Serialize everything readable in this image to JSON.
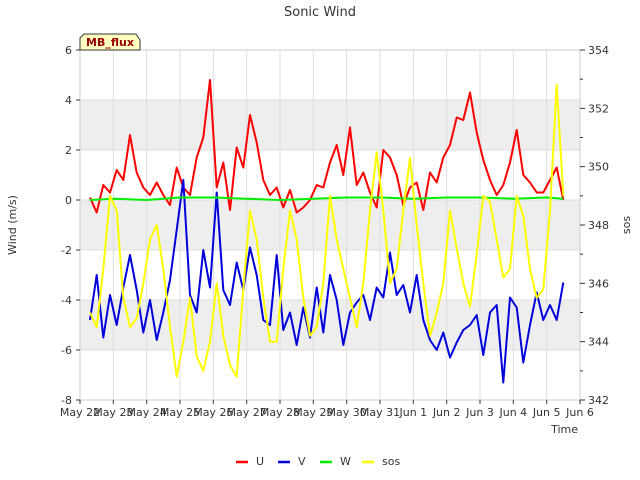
{
  "chart_data": {
    "type": "line",
    "title": "Sonic Wind",
    "xlabel": "Time",
    "ylabel": "Wind (m/s)",
    "y2label": "sos",
    "badge": "MB_flux",
    "x_ticks": [
      "May 22",
      "May 23",
      "May 24",
      "May 25",
      "May 26",
      "May 27",
      "May 28",
      "May 29",
      "May 30",
      "May 31",
      "Jun 1",
      "Jun 2",
      "Jun 3",
      "Jun 4",
      "Jun 5",
      "Jun 6"
    ],
    "xlim": [
      0,
      15
    ],
    "ylim": [
      -8,
      6
    ],
    "y_ticks": [
      -8,
      -6,
      -4,
      -2,
      0,
      2,
      4,
      6
    ],
    "y2lim": [
      342,
      354
    ],
    "y2_ticks": [
      342,
      344,
      346,
      348,
      350,
      352,
      354
    ],
    "grid": true,
    "legend_position": "bottom-center",
    "colors": {
      "U": "#ff0000",
      "V": "#0000dd",
      "W": "#00ee00",
      "sos": "#ffff00",
      "band": "#eeeeee",
      "badge_bg": "#ffffc0",
      "badge_text": "#990000"
    },
    "series": [
      {
        "name": "U",
        "axis": "left",
        "x": [
          0.3,
          0.5,
          0.7,
          0.9,
          1.1,
          1.3,
          1.5,
          1.7,
          1.9,
          2.1,
          2.3,
          2.5,
          2.7,
          2.9,
          3.1,
          3.3,
          3.5,
          3.7,
          3.9,
          4.1,
          4.3,
          4.5,
          4.7,
          4.9,
          5.1,
          5.3,
          5.5,
          5.7,
          5.9,
          6.1,
          6.3,
          6.5,
          6.7,
          6.9,
          7.1,
          7.3,
          7.5,
          7.7,
          7.9,
          8.1,
          8.3,
          8.5,
          8.7,
          8.9,
          9.1,
          9.3,
          9.5,
          9.7,
          9.9,
          10.1,
          10.3,
          10.5,
          10.7,
          10.9,
          11.1,
          11.3,
          11.5,
          11.7,
          11.9,
          12.1,
          12.3,
          12.5,
          12.7,
          12.9,
          13.1,
          13.3,
          13.5,
          13.7,
          13.9,
          14.1,
          14.3,
          14.5
        ],
        "values": [
          0.1,
          -0.5,
          0.6,
          0.3,
          1.2,
          0.8,
          2.6,
          1.1,
          0.5,
          0.2,
          0.7,
          0.2,
          -0.2,
          1.3,
          0.5,
          0.2,
          1.7,
          2.5,
          4.8,
          0.5,
          1.5,
          -0.4,
          2.1,
          1.3,
          3.4,
          2.3,
          0.8,
          0.2,
          0.5,
          -0.3,
          0.4,
          -0.5,
          -0.3,
          0.0,
          0.6,
          0.5,
          1.5,
          2.2,
          1.0,
          2.9,
          0.6,
          1.1,
          0.3,
          -0.3,
          2.0,
          1.7,
          1.0,
          -0.2,
          0.5,
          0.7,
          -0.4,
          1.1,
          0.7,
          1.7,
          2.2,
          3.3,
          3.2,
          4.3,
          2.7,
          1.6,
          0.8,
          0.2,
          0.6,
          1.5,
          2.8,
          1.0,
          0.7,
          0.3,
          0.3,
          0.8,
          1.3,
          0.0
        ]
      },
      {
        "name": "V",
        "axis": "left",
        "x": [
          0.3,
          0.5,
          0.7,
          0.9,
          1.1,
          1.3,
          1.5,
          1.7,
          1.9,
          2.1,
          2.3,
          2.5,
          2.7,
          2.9,
          3.1,
          3.3,
          3.5,
          3.7,
          3.9,
          4.1,
          4.3,
          4.5,
          4.7,
          4.9,
          5.1,
          5.3,
          5.5,
          5.7,
          5.9,
          6.1,
          6.3,
          6.5,
          6.7,
          6.9,
          7.1,
          7.3,
          7.5,
          7.7,
          7.9,
          8.1,
          8.3,
          8.5,
          8.7,
          8.9,
          9.1,
          9.3,
          9.5,
          9.7,
          9.9,
          10.1,
          10.3,
          10.5,
          10.7,
          10.9,
          11.1,
          11.3,
          11.5,
          11.7,
          11.9,
          12.1,
          12.3,
          12.5,
          12.7,
          12.9,
          13.1,
          13.3,
          13.5,
          13.7,
          13.9,
          14.1,
          14.3,
          14.5
        ],
        "values": [
          -4.8,
          -3.0,
          -5.5,
          -3.8,
          -5.0,
          -3.5,
          -2.2,
          -3.6,
          -5.3,
          -4.0,
          -5.6,
          -4.5,
          -3.2,
          -1.2,
          0.8,
          -3.8,
          -4.5,
          -2.0,
          -3.5,
          0.3,
          -3.6,
          -4.2,
          -2.5,
          -3.6,
          -1.9,
          -3.0,
          -4.8,
          -5.0,
          -2.2,
          -5.2,
          -4.5,
          -5.8,
          -4.3,
          -5.5,
          -3.5,
          -5.3,
          -3.0,
          -4.0,
          -5.8,
          -4.5,
          -4.1,
          -3.8,
          -4.8,
          -3.5,
          -3.9,
          -2.1,
          -3.8,
          -3.4,
          -4.5,
          -3.0,
          -4.8,
          -5.6,
          -6.0,
          -5.3,
          -6.3,
          -5.7,
          -5.2,
          -5.0,
          -4.6,
          -6.2,
          -4.5,
          -4.2,
          -7.3,
          -3.9,
          -4.3,
          -6.5,
          -5.0,
          -3.7,
          -4.8,
          -4.2,
          -4.8,
          -3.3
        ]
      },
      {
        "name": "W",
        "axis": "left",
        "x": [
          0.3,
          1.0,
          2.0,
          3.0,
          4.0,
          5.0,
          6.0,
          7.0,
          8.0,
          9.0,
          10.0,
          11.0,
          12.0,
          13.0,
          14.0,
          14.5
        ],
        "values": [
          0.0,
          0.05,
          0.0,
          0.1,
          0.1,
          0.05,
          0.0,
          0.05,
          0.1,
          0.1,
          0.05,
          0.1,
          0.1,
          0.05,
          0.1,
          0.05
        ]
      },
      {
        "name": "sos",
        "axis": "right",
        "x": [
          0.3,
          0.5,
          0.7,
          0.9,
          1.1,
          1.3,
          1.5,
          1.7,
          1.9,
          2.1,
          2.3,
          2.5,
          2.7,
          2.9,
          3.1,
          3.3,
          3.5,
          3.7,
          3.9,
          4.1,
          4.3,
          4.5,
          4.7,
          4.9,
          5.1,
          5.3,
          5.5,
          5.7,
          5.9,
          6.1,
          6.3,
          6.5,
          6.7,
          6.9,
          7.1,
          7.3,
          7.5,
          7.7,
          7.9,
          8.1,
          8.3,
          8.5,
          8.7,
          8.9,
          9.1,
          9.3,
          9.5,
          9.7,
          9.9,
          10.1,
          10.3,
          10.5,
          10.7,
          10.9,
          11.1,
          11.3,
          11.5,
          11.7,
          11.9,
          12.1,
          12.3,
          12.5,
          12.7,
          12.9,
          13.1,
          13.3,
          13.5,
          13.7,
          13.9,
          14.1,
          14.3,
          14.5
        ],
        "values": [
          345,
          344.5,
          346.5,
          349,
          348.5,
          345.5,
          344.5,
          344.8,
          346,
          347.5,
          348,
          346.5,
          344.5,
          342.8,
          344,
          345.5,
          343.5,
          343,
          344,
          346,
          344.2,
          343.2,
          342.8,
          345.8,
          348.5,
          347.5,
          345.5,
          344,
          344,
          346.5,
          348.5,
          347.5,
          345.5,
          344.2,
          344.5,
          346,
          349,
          347.5,
          346.5,
          345.5,
          344.5,
          346,
          348.5,
          350.5,
          348.5,
          346,
          346.5,
          348.5,
          350.3,
          348,
          346,
          344.2,
          345,
          346,
          348.5,
          347.2,
          346,
          345.2,
          347,
          349,
          348.8,
          347.5,
          346.2,
          346.5,
          349,
          348.3,
          346.5,
          345.5,
          345.8,
          348.5,
          352.8,
          349
        ]
      }
    ],
    "legend": [
      "U",
      "V",
      "W",
      "sos"
    ]
  }
}
